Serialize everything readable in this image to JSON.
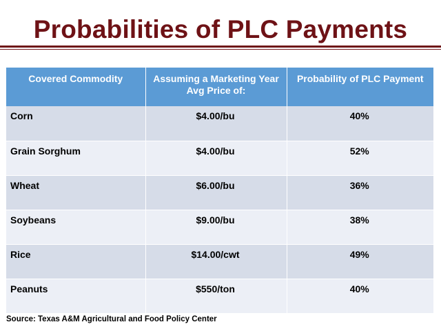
{
  "title": "Probabilities of PLC Payments",
  "table": {
    "headers": [
      "Covered Commodity",
      "Assuming a Marketing Year Avg Price of:",
      "Probability of PLC Payment"
    ],
    "rows": [
      {
        "commodity": "Corn",
        "price": "$4.00/bu",
        "probability": "40%"
      },
      {
        "commodity": "Grain Sorghum",
        "price": "$4.00/bu",
        "probability": "52%"
      },
      {
        "commodity": "Wheat",
        "price": "$6.00/bu",
        "probability": "36%"
      },
      {
        "commodity": "Soybeans",
        "price": "$9.00/bu",
        "probability": "38%"
      },
      {
        "commodity": "Rice",
        "price": "$14.00/cwt",
        "probability": "49%"
      },
      {
        "commodity": "Peanuts",
        "price": "$550/ton",
        "probability": "40%"
      }
    ]
  },
  "source": "Source: Texas A&M Agricultural and Food Policy Center",
  "colors": {
    "title": "#6e1216",
    "header_bg": "#5b9bd5",
    "row_dark": "#d6dce8",
    "row_light": "#eceff6"
  }
}
